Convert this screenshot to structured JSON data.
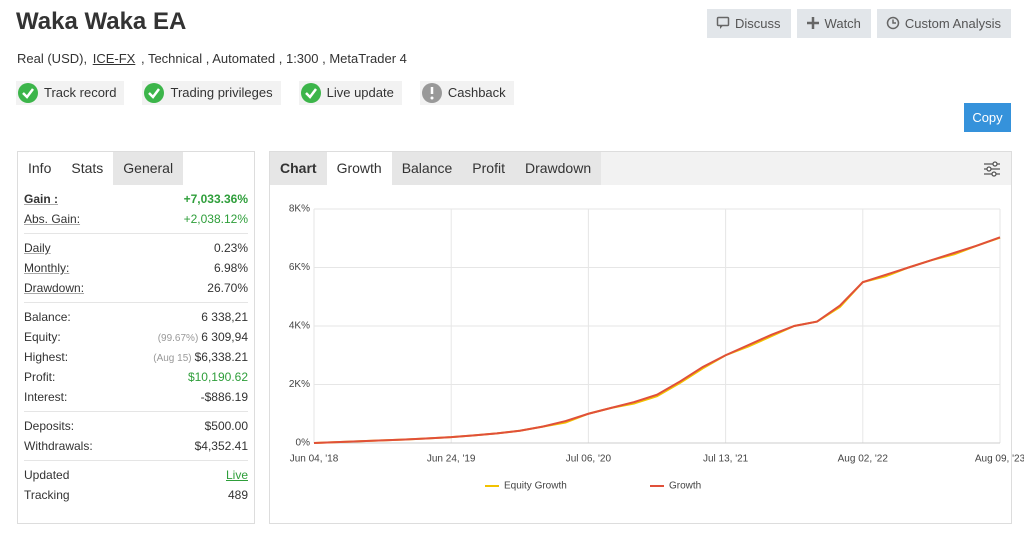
{
  "header": {
    "title": "Waka Waka EA",
    "info_prefix": "Real (USD),",
    "broker": "ICE-FX",
    "info_suffix": ", Technical , Automated , 1:300 , MetaTrader 4"
  },
  "buttons": [
    "Discuss",
    "Watch",
    "Custom Analysis"
  ],
  "copy_button": "Copy",
  "badges": [
    {
      "label": "Track record",
      "ok": true
    },
    {
      "label": "Trading privileges",
      "ok": true
    },
    {
      "label": "Live update",
      "ok": true
    },
    {
      "label": "Cashback",
      "ok": false
    }
  ],
  "left_tabs": [
    "Info",
    "Stats",
    "General"
  ],
  "stats": [
    [
      {
        "label": "Gain :",
        "value": "+7,033.36%",
        "highlight": true,
        "strong": true
      },
      {
        "label": "Abs. Gain:",
        "value": "+2,038.12%",
        "highlight": true
      }
    ],
    [
      {
        "label": "Daily",
        "value": "0.23%"
      },
      {
        "label": "Monthly:",
        "value": "6.98%"
      },
      {
        "label": "Drawdown:",
        "value": "26.70%"
      }
    ],
    [
      {
        "label": "Balance:",
        "value": "6 338,21"
      },
      {
        "label": "Equity:",
        "note": "(99.67%)",
        "value": "6 309,94"
      },
      {
        "label": "Highest:",
        "note": "(Aug 15)",
        "value": "$6,338.21"
      },
      {
        "label": "Profit:",
        "value": "$10,190.62",
        "highlight": true
      },
      {
        "label": "Interest:",
        "value": "-$886.19"
      }
    ],
    [
      {
        "label": "Deposits:",
        "value": "$500.00"
      },
      {
        "label": "Withdrawals:",
        "value": "$4,352.41"
      }
    ],
    [
      {
        "label": "Updated",
        "value": "Live",
        "highlight": true
      },
      {
        "label": "Tracking",
        "value": "489"
      }
    ]
  ],
  "chart_tabs": [
    "Chart",
    "Growth",
    "Balance",
    "Profit",
    "Drawdown"
  ],
  "chart_data": {
    "type": "line",
    "categories": [
      "Jun 04, '18",
      null,
      null,
      null,
      null,
      null,
      "Jun 24, '19",
      null,
      null,
      null,
      null,
      null,
      "Jul 06, '20",
      null,
      null,
      null,
      null,
      null,
      "Jul 13, '21",
      null,
      null,
      null,
      null,
      null,
      "Aug 02, '22",
      null,
      null,
      null,
      null,
      null,
      "Aug 09, '23"
    ],
    "series": [
      {
        "name": "Equity Growth",
        "color": "#f2c200",
        "values": [
          0,
          30,
          60,
          90,
          120,
          160,
          200,
          260,
          330,
          420,
          560,
          700,
          1000,
          1200,
          1350,
          1600,
          2050,
          2550,
          3000,
          3300,
          3650,
          4000,
          4150,
          4650,
          5500,
          5700,
          6000,
          6250,
          6450,
          6750,
          7020
        ]
      },
      {
        "name": "Growth",
        "color": "#e0503a",
        "values": [
          0,
          30,
          60,
          90,
          120,
          160,
          200,
          260,
          330,
          420,
          560,
          750,
          1000,
          1200,
          1400,
          1650,
          2100,
          2600,
          3000,
          3350,
          3700,
          4000,
          4150,
          4700,
          5500,
          5750,
          6000,
          6250,
          6500,
          6750,
          7033
        ]
      }
    ],
    "ylim": [
      0,
      8000
    ],
    "yticks": [
      {
        "value": 0,
        "label": "0%"
      },
      {
        "value": 2000,
        "label": "2K%"
      },
      {
        "value": 4000,
        "label": "4K%"
      },
      {
        "value": 6000,
        "label": "6K%"
      },
      {
        "value": 8000,
        "label": "8K%"
      }
    ],
    "grid": true
  }
}
